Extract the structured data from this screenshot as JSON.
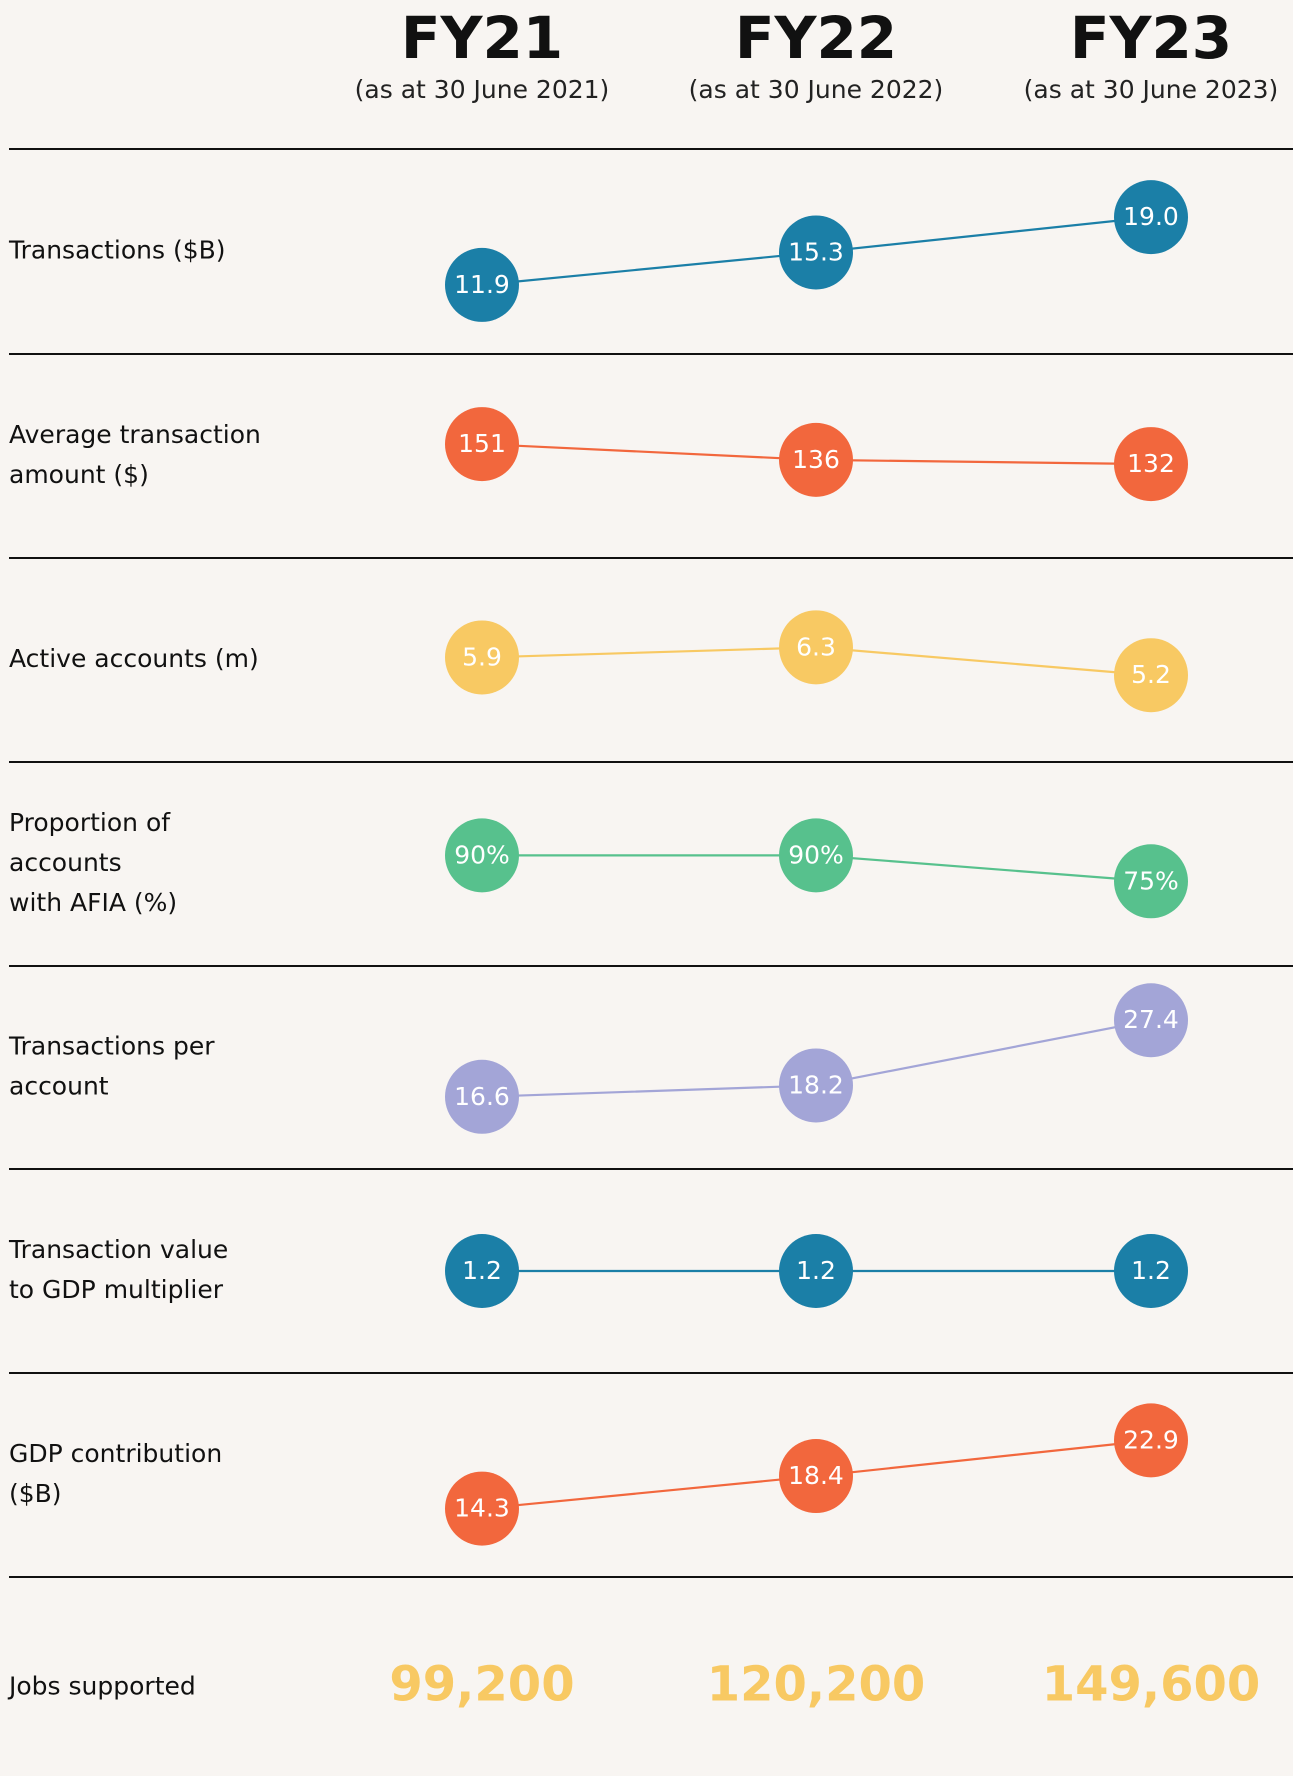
{
  "chart_data": {
    "type": "dot-rows",
    "columns": [
      {
        "title": "FY21",
        "subtitle": "(as at 30 June 2021)"
      },
      {
        "title": "FY22",
        "subtitle": "(as at 30 June 2022)"
      },
      {
        "title": "FY23",
        "subtitle": "(as at 30 June 2023)"
      }
    ],
    "rows": [
      {
        "label": [
          "Transactions ($B)"
        ],
        "color": "#1b7fa7",
        "values": [
          11.9,
          15.3,
          19.0
        ],
        "value_labels": [
          "11.9",
          "15.3",
          "19.0"
        ]
      },
      {
        "label": [
          "Average transaction",
          "amount ($)"
        ],
        "color": "#f2673d",
        "values": [
          151,
          136,
          132
        ]
      },
      {
        "label": [
          "Active accounts (m)"
        ],
        "color": "#f8c963",
        "values": [
          5.9,
          6.3,
          5.2
        ]
      },
      {
        "label": [
          "Proportion of",
          "accounts",
          "with AFIA (%)"
        ],
        "color": "#57c18d",
        "values": [
          90,
          90,
          75
        ],
        "value_labels": [
          "90%",
          "90%",
          "75%"
        ]
      },
      {
        "label": [
          "Transactions per",
          "account"
        ],
        "color": "#a3a5d7",
        "values": [
          16.6,
          18.2,
          27.4
        ]
      },
      {
        "label": [
          "Transaction value",
          "to GDP multiplier"
        ],
        "color": "#1b7fa7",
        "values": [
          1.2,
          1.2,
          1.2
        ]
      },
      {
        "label": [
          "GDP contribution",
          "($B)"
        ],
        "color": "#f2673d",
        "values": [
          14.3,
          18.4,
          22.9
        ]
      }
    ],
    "jobs": {
      "label": "Jobs supported",
      "color": "#f8c963",
      "values": [
        99200,
        120200,
        149600
      ],
      "value_labels": [
        "99,200",
        "120,200",
        "149,600"
      ]
    }
  }
}
